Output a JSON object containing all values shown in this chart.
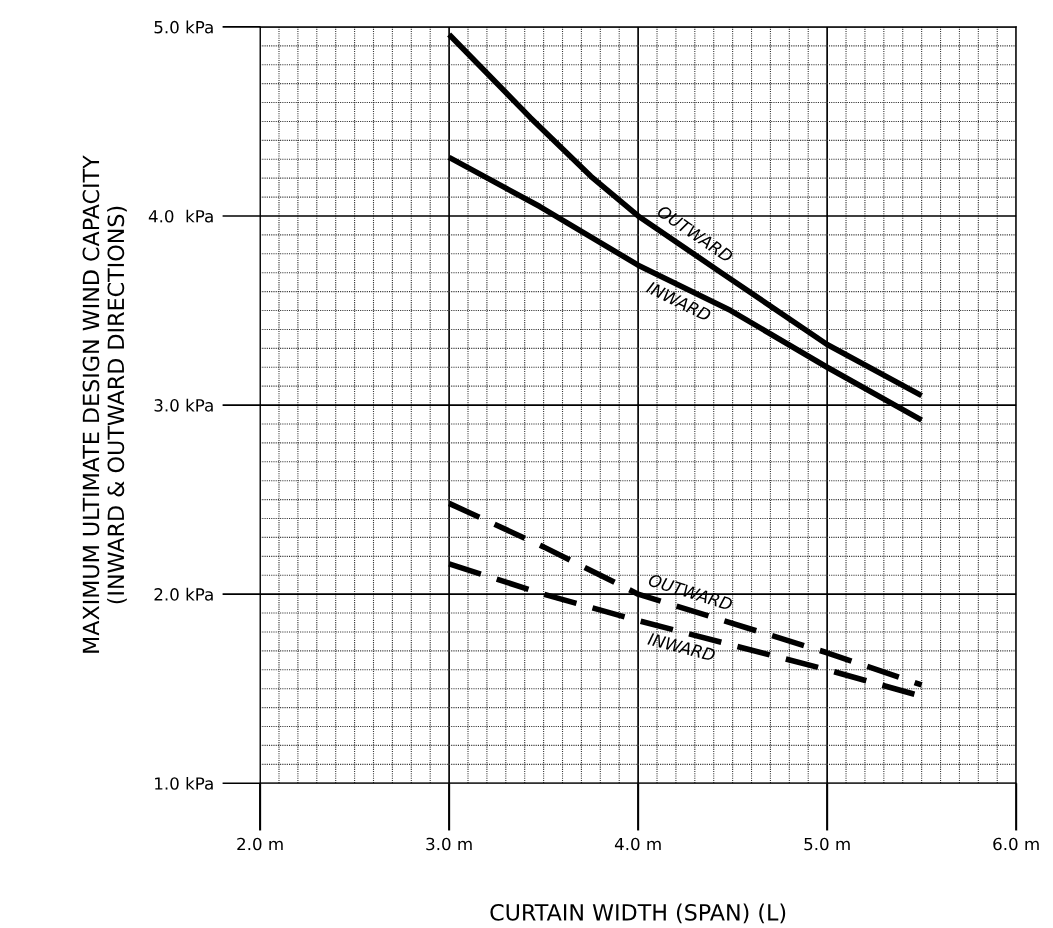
{
  "chart_data": {
    "type": "line",
    "xlabel": "CURTAIN WIDTH (SPAN) (L)",
    "ylabel": "MAXIMUM ULTIMATE DESIGN WIND CAPACITY\n(INWARD & OUTWARD DIRECTIONS)",
    "xlim": [
      2,
      6
    ],
    "ylim": [
      1,
      5
    ],
    "xticks": [
      {
        "value": 2,
        "label": "2.0 m"
      },
      {
        "value": 3,
        "label": "3.0 m"
      },
      {
        "value": 4,
        "label": "4.0 m"
      },
      {
        "value": 5,
        "label": "5.0 m"
      },
      {
        "value": 6,
        "label": "6.0 m"
      }
    ],
    "yticks": [
      {
        "value": 1,
        "label": "1.0 kPa"
      },
      {
        "value": 2,
        "label": "2.0 kPa"
      },
      {
        "value": 3,
        "label": "3.0 kPa"
      },
      {
        "value": 4,
        "label": "4.0  kPa"
      },
      {
        "value": 5,
        "label": "5.0 kPa"
      }
    ],
    "grid": true,
    "marker": "none",
    "series": [
      {
        "color": "#000000",
        "line_style": "solid",
        "x": [
          3.0,
          3.43,
          3.75,
          4.0,
          4.44,
          5.0,
          5.5
        ],
        "values": [
          4.96,
          4.52,
          4.21,
          4.0,
          3.7,
          3.32,
          3.05
        ]
      },
      {
        "color": "#000000",
        "line_style": "solid",
        "x": [
          3.0,
          3.48,
          4.0,
          4.49,
          5.0,
          5.5
        ],
        "values": [
          4.31,
          4.05,
          3.74,
          3.5,
          3.2,
          2.92
        ]
      },
      {
        "color": "#000000",
        "line_style": "dashed",
        "x": [
          3.0,
          3.5,
          4.0,
          5.0,
          5.5
        ],
        "values": [
          2.48,
          2.25,
          2.0,
          1.69,
          1.52
        ]
      },
      {
        "color": "#000000",
        "line_style": "dashed",
        "x": [
          3.0,
          3.5,
          4.0,
          5.0,
          5.5
        ],
        "values": [
          2.16,
          2.0,
          1.86,
          1.6,
          1.46
        ]
      }
    ],
    "annotations": [
      "OUTWARD",
      "INWARD",
      "OUTWARD",
      "INWARD"
    ]
  }
}
